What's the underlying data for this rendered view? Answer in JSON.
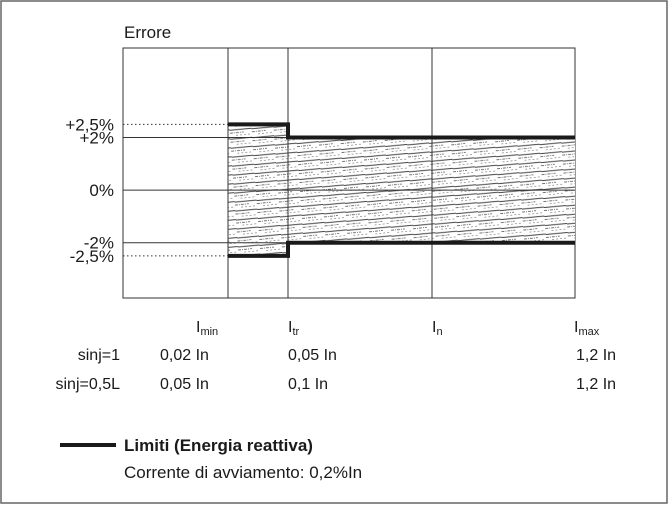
{
  "chart_data": {
    "type": "area",
    "title": "Errore",
    "ylabel": "",
    "xlabel": "",
    "y_ticks": [
      {
        "label": "+2,5%",
        "value": 2.5,
        "dotted": true
      },
      {
        "label": "+2%",
        "value": 2.0,
        "dotted": false
      },
      {
        "label": "0%",
        "value": 0.0,
        "dotted": false
      },
      {
        "label": "-2%",
        "value": -2.0,
        "dotted": false
      },
      {
        "label": "-2,5%",
        "value": -2.5,
        "dotted": true
      }
    ],
    "ylim": [
      -4.1,
      5.4
    ],
    "x_ticks": [
      {
        "base": "I",
        "sub": "min"
      },
      {
        "base": "I",
        "sub": "tr"
      },
      {
        "base": "I",
        "sub": "n"
      },
      {
        "base": "I",
        "sub": "max"
      }
    ],
    "limits": [
      {
        "from": "Imin",
        "to": "Itr",
        "upper": 2.5,
        "lower": -2.5
      },
      {
        "from": "Itr",
        "to": "Imax",
        "upper": 2.0,
        "lower": -2.0
      }
    ],
    "rows": [
      {
        "label": "sinj=1",
        "values": [
          "0,02 In",
          "0,05 In",
          "",
          "1,2 In"
        ]
      },
      {
        "label": "sinj=0,5L",
        "values": [
          "0,05 In",
          "0,1 In",
          "",
          "1,2 In"
        ]
      }
    ],
    "legend": {
      "series_name": "Limiti (Energia reattiva)",
      "note": "Corrente di avviamento: 0,2%In"
    }
  },
  "colors": {
    "frame": "#666666",
    "grid": "#333333",
    "limit": "#1a1a1a",
    "hatch": "#333333"
  }
}
